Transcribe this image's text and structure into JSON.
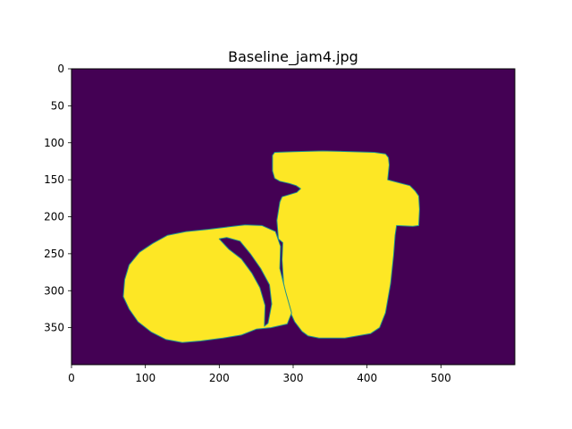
{
  "chart_data": {
    "type": "heatmap",
    "title": "Baseline_jam4.jpg",
    "xlabel": "",
    "ylabel": "",
    "xlim": [
      0,
      600
    ],
    "ylim": [
      400,
      0
    ],
    "x_ticks": [
      0,
      100,
      200,
      300,
      400,
      500
    ],
    "y_ticks": [
      0,
      50,
      100,
      150,
      200,
      250,
      300,
      350
    ],
    "x_tick_labels": [
      "0",
      "100",
      "200",
      "300",
      "400",
      "500"
    ],
    "y_tick_labels": [
      "0",
      "50",
      "100",
      "150",
      "200",
      "250",
      "300",
      "350"
    ],
    "grid": false,
    "colormap": "viridis",
    "value_colors": {
      "0": "#440154",
      "1": "#fde725"
    },
    "edge_color": "#21918c",
    "mask_values": {
      "background": 0,
      "foreground": 1
    },
    "regions": [
      {
        "name": "jar",
        "value": 1,
        "outline": [
          [
            272,
            117
          ],
          [
            275,
            113
          ],
          [
            300,
            112
          ],
          [
            340,
            111
          ],
          [
            380,
            112
          ],
          [
            410,
            113
          ],
          [
            425,
            115
          ],
          [
            429,
            120
          ],
          [
            430,
            130
          ],
          [
            428,
            150
          ],
          [
            447,
            155
          ],
          [
            458,
            158
          ],
          [
            465,
            165
          ],
          [
            470,
            172
          ],
          [
            471,
            190
          ],
          [
            470,
            212
          ],
          [
            462,
            213
          ],
          [
            440,
            212
          ],
          [
            438,
            225
          ],
          [
            436,
            252
          ],
          [
            432,
            290
          ],
          [
            425,
            330
          ],
          [
            417,
            350
          ],
          [
            405,
            358
          ],
          [
            370,
            364
          ],
          [
            335,
            364
          ],
          [
            320,
            361
          ],
          [
            312,
            355
          ],
          [
            302,
            342
          ],
          [
            292,
            320
          ],
          [
            287,
            290
          ],
          [
            285,
            258
          ],
          [
            286,
            235
          ],
          [
            280,
            230
          ],
          [
            278,
            205
          ],
          [
            280,
            192
          ],
          [
            282,
            180
          ],
          [
            285,
            173
          ],
          [
            295,
            170
          ],
          [
            305,
            167
          ],
          [
            310,
            162
          ],
          [
            304,
            158
          ],
          [
            295,
            155
          ],
          [
            282,
            152
          ],
          [
            275,
            148
          ],
          [
            272,
            138
          ]
        ]
      },
      {
        "name": "left-round-object",
        "value": 1,
        "outline": [
          [
            70,
            308
          ],
          [
            72,
            285
          ],
          [
            78,
            265
          ],
          [
            92,
            248
          ],
          [
            110,
            236
          ],
          [
            130,
            225
          ],
          [
            155,
            220
          ],
          [
            185,
            217
          ],
          [
            210,
            214
          ],
          [
            235,
            211
          ],
          [
            258,
            212
          ],
          [
            276,
            220
          ],
          [
            283,
            240
          ],
          [
            282,
            270
          ],
          [
            290,
            302
          ],
          [
            298,
            330
          ],
          [
            292,
            345
          ],
          [
            270,
            350
          ],
          [
            250,
            352
          ],
          [
            230,
            360
          ],
          [
            205,
            364
          ],
          [
            175,
            368
          ],
          [
            150,
            370
          ],
          [
            128,
            366
          ],
          [
            108,
            356
          ],
          [
            90,
            342
          ],
          [
            78,
            325
          ]
        ]
      },
      {
        "name": "dark-gap-sliver",
        "value": 0,
        "outline": [
          [
            200,
            230
          ],
          [
            210,
            228
          ],
          [
            228,
            233
          ],
          [
            242,
            250
          ],
          [
            256,
            270
          ],
          [
            268,
            292
          ],
          [
            271,
            318
          ],
          [
            266,
            344
          ],
          [
            261,
            348
          ],
          [
            262,
            320
          ],
          [
            255,
            296
          ],
          [
            244,
            276
          ],
          [
            230,
            257
          ],
          [
            213,
            244
          ]
        ]
      }
    ]
  }
}
